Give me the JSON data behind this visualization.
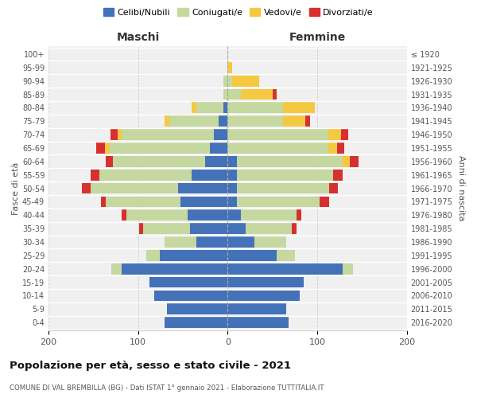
{
  "age_groups": [
    "0-4",
    "5-9",
    "10-14",
    "15-19",
    "20-24",
    "25-29",
    "30-34",
    "35-39",
    "40-44",
    "45-49",
    "50-54",
    "55-59",
    "60-64",
    "65-69",
    "70-74",
    "75-79",
    "80-84",
    "85-89",
    "90-94",
    "95-99",
    "100+"
  ],
  "birth_years": [
    "2016-2020",
    "2011-2015",
    "2006-2010",
    "2001-2005",
    "1996-2000",
    "1991-1995",
    "1986-1990",
    "1981-1985",
    "1976-1980",
    "1971-1975",
    "1966-1970",
    "1961-1965",
    "1956-1960",
    "1951-1955",
    "1946-1950",
    "1941-1945",
    "1936-1940",
    "1931-1935",
    "1926-1930",
    "1921-1925",
    "≤ 1920"
  ],
  "maschi": {
    "celibi": [
      70,
      68,
      82,
      87,
      118,
      76,
      35,
      42,
      45,
      53,
      55,
      40,
      25,
      20,
      15,
      10,
      5,
      0,
      0,
      0,
      0
    ],
    "coniugati": [
      0,
      0,
      0,
      0,
      12,
      15,
      35,
      52,
      68,
      83,
      98,
      103,
      103,
      112,
      103,
      55,
      30,
      5,
      5,
      0,
      0
    ],
    "vedovi": [
      0,
      0,
      0,
      0,
      0,
      0,
      0,
      0,
      0,
      0,
      0,
      0,
      0,
      5,
      5,
      5,
      5,
      0,
      0,
      0,
      0
    ],
    "divorziati": [
      0,
      0,
      0,
      0,
      0,
      0,
      0,
      5,
      5,
      5,
      10,
      10,
      8,
      10,
      8,
      0,
      0,
      0,
      0,
      0,
      0
    ]
  },
  "femmine": {
    "nubili": [
      68,
      65,
      80,
      85,
      128,
      55,
      30,
      20,
      15,
      10,
      10,
      10,
      10,
      0,
      0,
      0,
      0,
      0,
      0,
      0,
      0
    ],
    "coniugate": [
      0,
      0,
      0,
      0,
      12,
      20,
      35,
      52,
      62,
      93,
      103,
      108,
      118,
      112,
      112,
      62,
      62,
      15,
      5,
      0,
      0
    ],
    "vedove": [
      0,
      0,
      0,
      0,
      0,
      0,
      0,
      0,
      0,
      0,
      0,
      0,
      8,
      10,
      15,
      25,
      35,
      35,
      30,
      5,
      0
    ],
    "divorziate": [
      0,
      0,
      0,
      0,
      0,
      0,
      0,
      5,
      5,
      10,
      10,
      10,
      10,
      8,
      8,
      5,
      0,
      5,
      0,
      0,
      0
    ]
  },
  "color_celibi": "#4472b8",
  "color_coniugati": "#c5d8a0",
  "color_vedovi": "#f5c842",
  "color_divorziati": "#d73030",
  "title": "Popolazione per età, sesso e stato civile - 2021",
  "subtitle": "COMUNE DI VAL BREMBILLA (BG) - Dati ISTAT 1° gennaio 2021 - Elaborazione TUTTITALIA.IT",
  "xlabel_left": "Maschi",
  "xlabel_right": "Femmine",
  "ylabel_left": "Fasce di età",
  "ylabel_right": "Anni di nascita",
  "xlim": 200,
  "bg_color": "#ffffff",
  "plot_bg": "#f0f0f0"
}
